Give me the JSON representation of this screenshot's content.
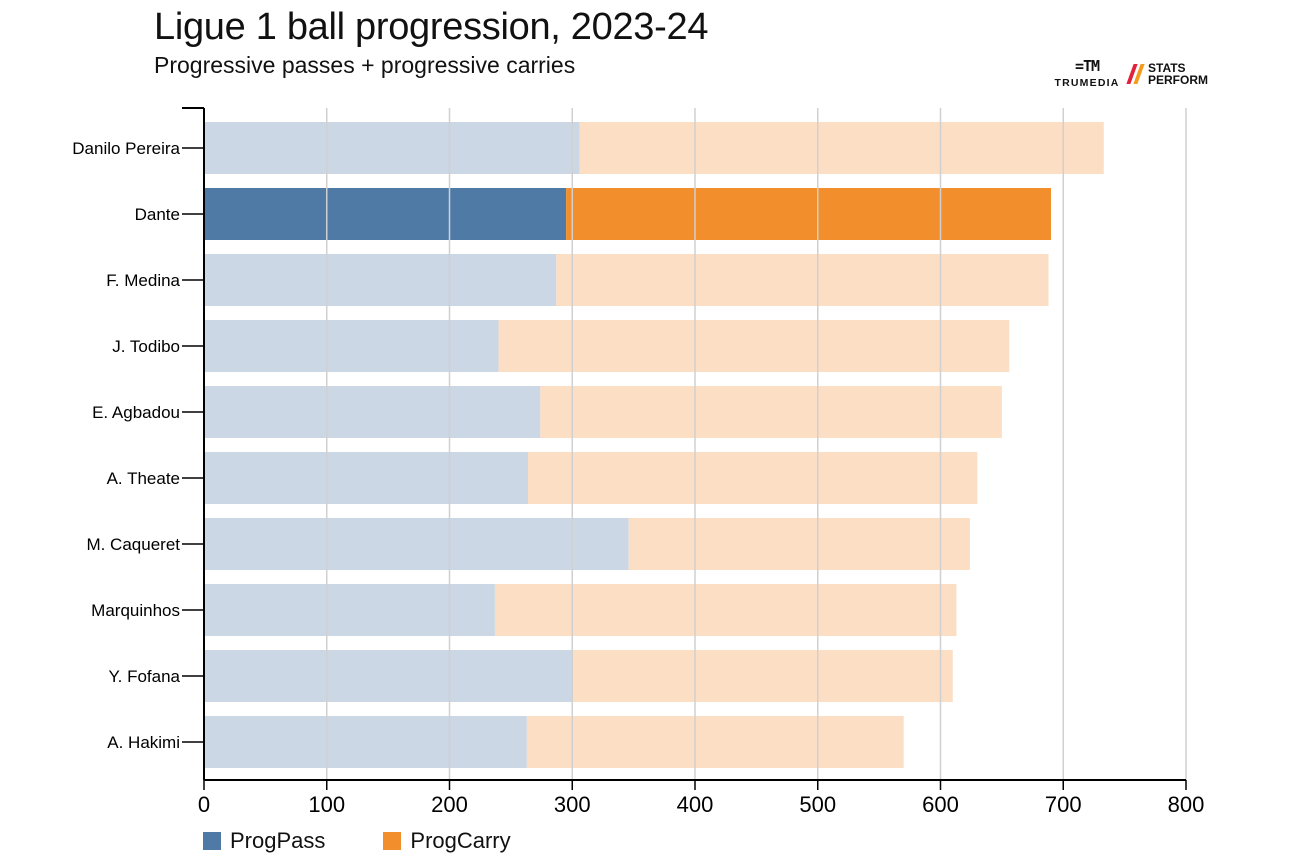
{
  "header": {
    "title": "Ligue 1 ball progression, 2023-24",
    "subtitle": "Progressive passes + progressive carries"
  },
  "logos": {
    "trumedia_mark": "=TM",
    "trumedia_word": "TRUMEDIA",
    "stats_line1": "STATS",
    "stats_line2": "PERFORM"
  },
  "colors": {
    "prog_pass": "#4f7aa6",
    "prog_carry": "#f28e2c",
    "prog_pass_faded": "#cbd7e4",
    "prog_carry_faded": "#fbdec4",
    "grid": "#d0d0d0",
    "axis": "#000000",
    "stats_red": "#e0223b",
    "stats_orange": "#f59a1b"
  },
  "chart_data": {
    "type": "bar",
    "orientation": "horizontal",
    "stacked": true,
    "title": "Ligue 1 ball progression, 2023-24",
    "subtitle": "Progressive passes + progressive carries",
    "xlabel": "",
    "ylabel": "",
    "xlim": [
      0,
      800
    ],
    "xticks": [
      0,
      100,
      200,
      300,
      400,
      500,
      600,
      700,
      800
    ],
    "grid": true,
    "legend_position": "bottom-left",
    "highlighted_category": "Dante",
    "categories": [
      "Danilo Pereira",
      "Dante",
      "F. Medina",
      "J. Todibo",
      "E. Agbadou",
      "A. Theate",
      "M. Caqueret",
      "Marquinhos",
      "Y. Fofana",
      "A. Hakimi"
    ],
    "series": [
      {
        "name": "ProgPass",
        "values": [
          306,
          295,
          287,
          240,
          274,
          264,
          346,
          237,
          300,
          263
        ]
      },
      {
        "name": "ProgCarry",
        "values": [
          427,
          395,
          401,
          416,
          376,
          366,
          278,
          376,
          310,
          307
        ]
      }
    ]
  }
}
